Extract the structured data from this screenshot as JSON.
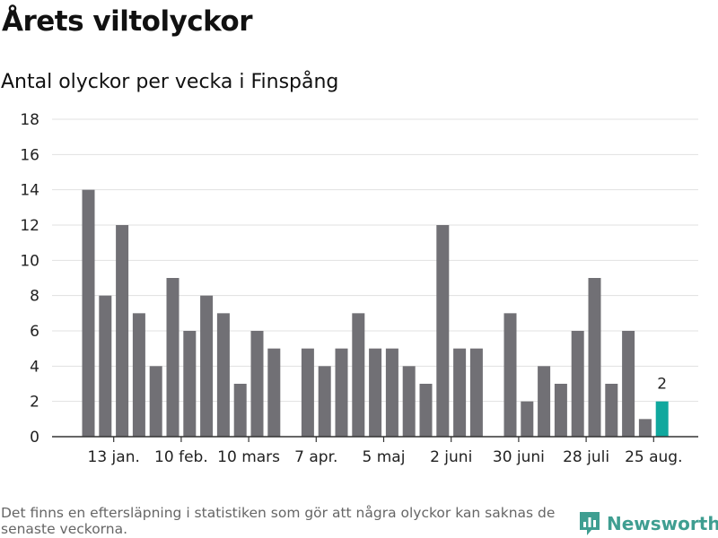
{
  "header": {
    "title": "Årets viltolyckor",
    "subtitle": "Antal olyckor per vecka i Finspång"
  },
  "footer": {
    "note": "Det finns en eftersläpning i statistiken som gör att några olyckor kan saknas de senaste veckorna.",
    "brand": "Newsworthy",
    "brand_icon": "newsworthy-logo-icon"
  },
  "colors": {
    "bar": "#717075",
    "highlight": "#10a89e",
    "grid": "#e1e1e1",
    "axis": "#333333",
    "brand": "#3f9e91"
  },
  "chart_data": {
    "type": "bar",
    "title": "Antal olyckor per vecka i Finspång",
    "ylim": [
      0,
      18
    ],
    "yticks": [
      0,
      2,
      4,
      6,
      8,
      10,
      12,
      14,
      16,
      18
    ],
    "grid": true,
    "categories": [
      "1",
      "2",
      "3",
      "4",
      "5",
      "6",
      "7",
      "8",
      "9",
      "10",
      "11",
      "12",
      "13",
      "14",
      "15",
      "16",
      "17",
      "18",
      "19",
      "20",
      "21",
      "22",
      "23",
      "24",
      "25",
      "26",
      "27",
      "28",
      "29",
      "30",
      "31",
      "32",
      "33",
      "34",
      "35"
    ],
    "values": [
      14,
      8,
      12,
      7,
      4,
      9,
      6,
      8,
      7,
      3,
      6,
      5,
      0,
      5,
      4,
      5,
      7,
      5,
      5,
      4,
      3,
      12,
      5,
      5,
      0,
      7,
      2,
      4,
      3,
      6,
      9,
      3,
      6,
      1,
      2
    ],
    "highlight_index": 34,
    "highlight_label": "2",
    "xtick_labels": [
      {
        "category": "2",
        "label": "13 jan."
      },
      {
        "category": "6",
        "label": "10 feb."
      },
      {
        "category": "10",
        "label": "10 mars"
      },
      {
        "category": "14",
        "label": "7 apr."
      },
      {
        "category": "18",
        "label": "5 maj"
      },
      {
        "category": "22",
        "label": "2 juni"
      },
      {
        "category": "26",
        "label": "30 juni"
      },
      {
        "category": "30",
        "label": "28 juli"
      },
      {
        "category": "34",
        "label": "25 aug."
      }
    ]
  }
}
